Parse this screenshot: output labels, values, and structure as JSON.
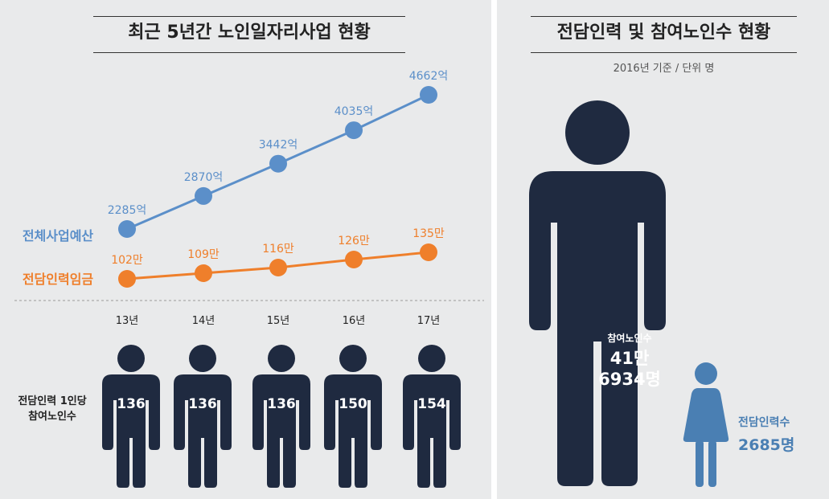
{
  "left_title": "최근 5년간 노인일자리사업 현황",
  "right_title": "전담인력 및 참여노인수 현황",
  "right_subtitle": "2016년 기준  /  단위 명",
  "colors": {
    "blue": "#5b8fc9",
    "orange": "#ef7f2b",
    "navy": "#1f2a40",
    "pictogram_small": "#4a7fb3",
    "background": "#e9eaeb"
  },
  "row_label": [
    "전담인력 1인당",
    "참여노인수"
  ],
  "chart_data": {
    "type": "line",
    "categories": [
      "13년",
      "14년",
      "15년",
      "16년",
      "17년"
    ],
    "series": [
      {
        "name": "전체사업예산",
        "values": [
          2285,
          2870,
          3442,
          4035,
          4662
        ],
        "labels": [
          "2285억",
          "2870억",
          "3442억",
          "4035억",
          "4662억"
        ],
        "color": "#5b8fc9"
      },
      {
        "name": "전담인력임금",
        "values": [
          102,
          109,
          116,
          126,
          135
        ],
        "labels": [
          "102만",
          "109만",
          "116만",
          "126만",
          "135만"
        ],
        "color": "#ef7f2b"
      }
    ],
    "per_staff_participants": [
      136,
      136,
      136,
      150,
      154
    ],
    "comparison": {
      "participants": {
        "caption": "참여노인수",
        "value_line1": "41만",
        "value_line2": "6934명",
        "value": 416934
      },
      "staff": {
        "caption": "전담인력수",
        "value": "2685명",
        "count": 2685
      }
    }
  }
}
